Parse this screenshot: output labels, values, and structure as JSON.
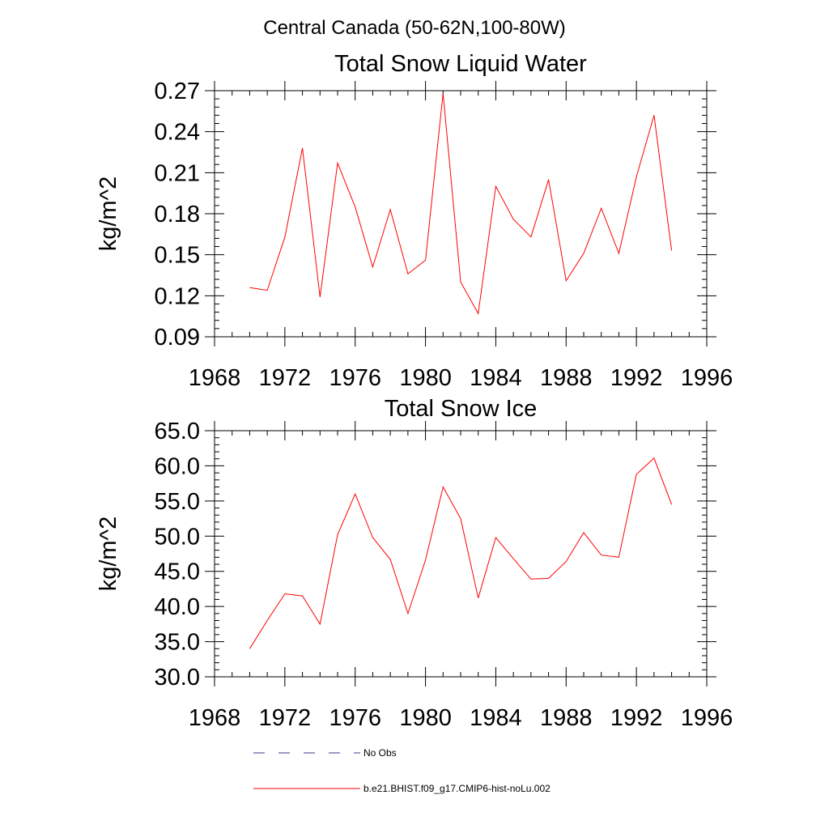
{
  "figure_title": "Central Canada (50-62N,100-80W)",
  "colors": {
    "model_line": "#ff0000",
    "obs_line": "#3a3a8c",
    "axis": "#000000"
  },
  "legend": {
    "obs_label": "No Obs",
    "model_label": "b.e21.BHIST.f09_g17.CMIP6-hist-noLu.002"
  },
  "chart_data": [
    {
      "type": "line",
      "title": "Total Snow Liquid Water",
      "ylabel": "kg/m^2",
      "xlabel": "",
      "xlim": [
        1968,
        1996
      ],
      "ylim": [
        0.09,
        0.27
      ],
      "xticks": [
        1968,
        1972,
        1976,
        1980,
        1984,
        1988,
        1992,
        1996
      ],
      "yticks": [
        "0.09",
        "0.12",
        "0.15",
        "0.18",
        "0.21",
        "0.24",
        "0.27"
      ],
      "grid": false,
      "series": [
        {
          "name": "b.e21.BHIST.f09_g17.CMIP6-hist-noLu.002",
          "x": [
            1970,
            1971,
            1972,
            1973,
            1974,
            1975,
            1976,
            1977,
            1978,
            1979,
            1980,
            1981,
            1982,
            1983,
            1984,
            1985,
            1986,
            1987,
            1988,
            1989,
            1990,
            1991,
            1992,
            1993,
            1994
          ],
          "values": [
            0.126,
            0.124,
            0.163,
            0.228,
            0.119,
            0.217,
            0.185,
            0.141,
            0.183,
            0.136,
            0.146,
            0.268,
            0.13,
            0.107,
            0.2,
            0.176,
            0.163,
            0.205,
            0.131,
            0.151,
            0.184,
            0.151,
            0.207,
            0.252,
            0.153
          ]
        }
      ]
    },
    {
      "type": "line",
      "title": "Total Snow Ice",
      "ylabel": "kg/m^2",
      "xlabel": "",
      "xlim": [
        1968,
        1996
      ],
      "ylim": [
        30.0,
        65.0
      ],
      "xticks": [
        1968,
        1972,
        1976,
        1980,
        1984,
        1988,
        1992,
        1996
      ],
      "yticks": [
        "30.0",
        "35.0",
        "40.0",
        "45.0",
        "50.0",
        "55.0",
        "60.0",
        "65.0"
      ],
      "grid": false,
      "series": [
        {
          "name": "b.e21.BHIST.f09_g17.CMIP6-hist-noLu.002",
          "x": [
            1970,
            1971,
            1972,
            1973,
            1974,
            1975,
            1976,
            1977,
            1978,
            1979,
            1980,
            1981,
            1982,
            1983,
            1984,
            1985,
            1986,
            1987,
            1988,
            1989,
            1990,
            1991,
            1992,
            1993,
            1994
          ],
          "values": [
            34.0,
            38.0,
            41.8,
            41.5,
            37.5,
            50.2,
            56.0,
            49.8,
            46.7,
            39.0,
            46.6,
            57.0,
            52.5,
            41.2,
            49.8,
            46.8,
            43.9,
            44.0,
            46.4,
            50.5,
            47.3,
            47.0,
            58.8,
            61.1,
            54.5
          ]
        }
      ]
    }
  ]
}
